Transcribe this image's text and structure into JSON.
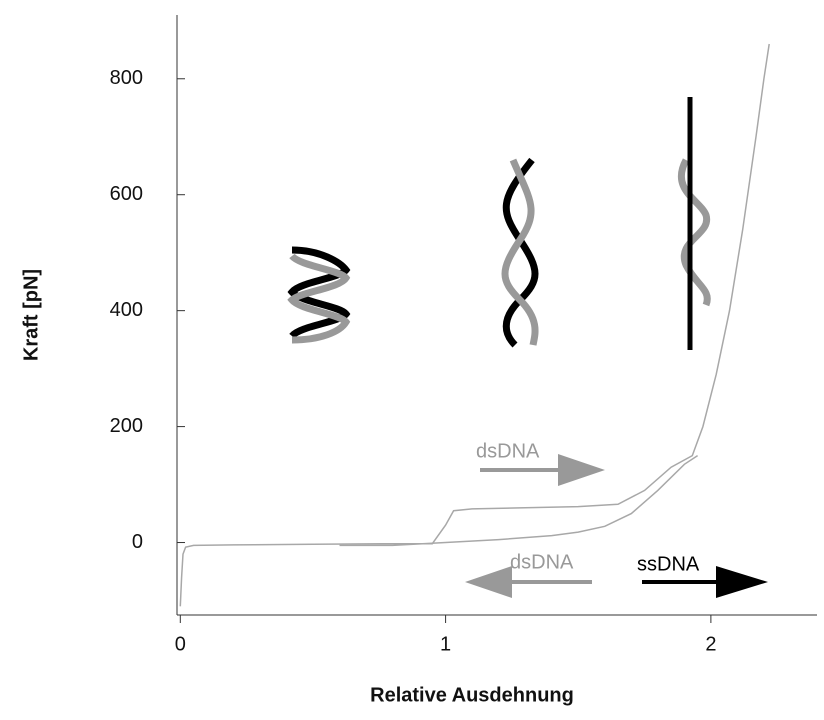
{
  "chart_data": {
    "type": "line",
    "x_label": "Relative Ausdehnung",
    "y_label": "Kraft [pN]",
    "series": [
      {
        "color": "#a8a8a8",
        "x": [
          0,
          0.005,
          0.01,
          0.02,
          0.05,
          0.2,
          0.5,
          0.8,
          0.95,
          1.0,
          1.03,
          1.1,
          1.3,
          1.5,
          1.65,
          1.75,
          1.85,
          1.93,
          1.97,
          2.02,
          2.07,
          2.12,
          2.17,
          2.2,
          2.22
        ],
        "values": [
          -110,
          -60,
          -20,
          -8,
          -5,
          -4,
          -3,
          -2,
          -2,
          30,
          55,
          58,
          60,
          62,
          66,
          90,
          130,
          150,
          200,
          290,
          400,
          540,
          700,
          800,
          860
        ]
      },
      {
        "color": "#a8a8a8",
        "x": [
          0.6,
          0.8,
          1.0,
          1.2,
          1.4,
          1.5,
          1.6,
          1.7,
          1.8,
          1.9,
          1.95
        ],
        "values": [
          -5,
          -5,
          0,
          5,
          12,
          18,
          28,
          50,
          90,
          135,
          150
        ]
      }
    ],
    "annotations": [
      "dsDNA",
      "dsDNA",
      "ssDNA"
    ],
    "xlim": [
      -0.02,
      2.4
    ],
    "ylim": [
      -125,
      910
    ],
    "xticks": [
      0,
      1,
      2
    ],
    "yticks": [
      0,
      200,
      400,
      600,
      800
    ],
    "grid": false
  }
}
